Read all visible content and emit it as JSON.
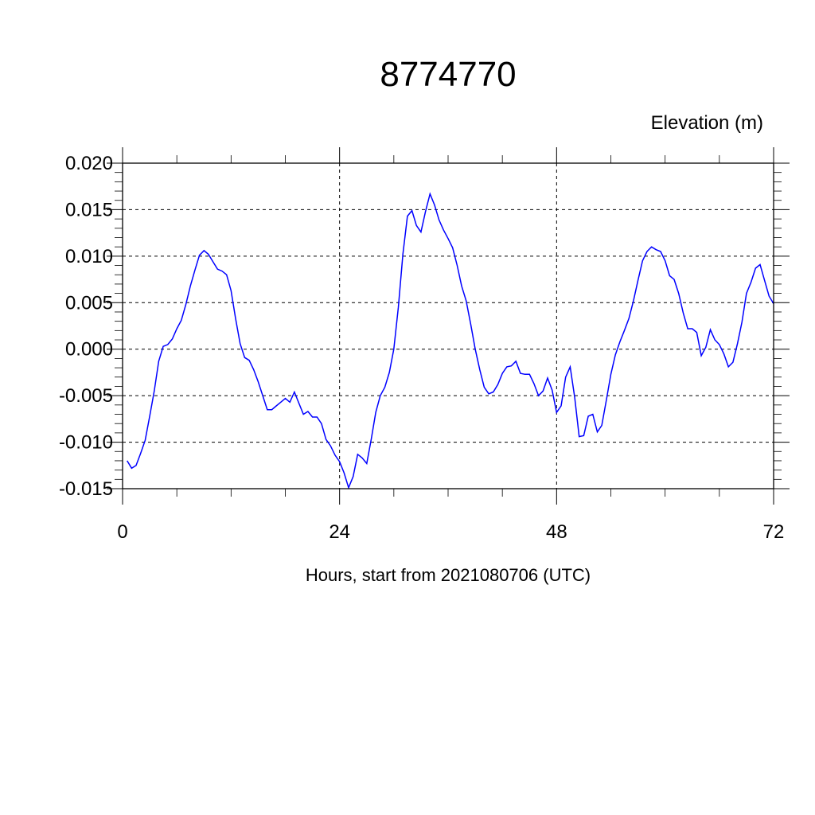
{
  "chart_data": {
    "type": "line",
    "title": "8774770",
    "subtitle": "Elevation (m)",
    "xlabel": "Hours, start from 2021080706 (UTC)",
    "ylabel": "",
    "xlim": [
      0,
      72
    ],
    "ylim": [
      -0.015,
      0.02
    ],
    "xticks": [
      0,
      24,
      48,
      72
    ],
    "xtick_labels": [
      "0",
      "24",
      "48",
      "72"
    ],
    "yticks": [
      -0.015,
      -0.01,
      -0.005,
      0.0,
      0.005,
      0.01,
      0.015,
      0.02
    ],
    "ytick_labels": [
      "-0.015",
      "-0.010",
      "-0.005",
      "0.000",
      "0.005",
      "0.010",
      "0.015",
      "0.020"
    ],
    "grid": true,
    "line_color": "#0000ff",
    "series": [
      {
        "x": [
          0.5,
          1,
          1.5,
          2,
          2.5,
          3,
          3.5,
          4,
          4.5,
          5,
          5.5,
          6,
          6.5,
          7,
          7.5,
          8,
          8.5,
          9,
          9.5,
          10,
          10.5,
          11,
          11.5,
          12,
          12.5,
          13,
          13.5,
          14,
          14.5,
          15,
          15.5,
          16,
          16.5,
          17,
          17.5,
          18,
          18.5,
          19,
          19.5,
          20,
          20.5,
          21,
          21.5,
          22,
          22.5,
          23,
          23.5,
          24,
          24.5,
          25,
          25.5,
          26,
          26.5,
          27,
          27.5,
          28,
          28.5,
          29,
          29.5,
          30,
          30.5,
          31,
          31.5,
          32,
          32.5,
          33,
          33.5,
          34,
          34.5,
          35,
          35.5,
          36,
          36.5,
          37,
          37.5,
          38,
          38.5,
          39,
          39.5,
          40,
          40.5,
          41,
          41.5,
          42,
          42.5,
          43,
          43.5,
          44,
          44.5,
          45,
          45.5,
          46,
          46.5,
          47,
          47.5,
          48,
          48.5,
          49,
          49.5,
          50,
          50.5,
          51,
          51.5,
          52,
          52.5,
          53,
          53.5,
          54,
          54.5,
          55,
          55.5,
          56,
          56.5,
          57,
          57.5,
          58,
          58.5,
          59,
          59.5,
          60,
          60.5,
          61,
          61.5,
          62,
          62.5,
          63,
          63.5,
          64,
          64.5,
          65,
          65.5,
          66,
          66.5,
          67,
          67.5,
          68,
          68.5,
          69,
          69.5,
          70,
          70.5,
          71,
          71.5,
          72
        ],
        "values": [
          -0.012,
          -0.0128,
          -0.0125,
          -0.0112,
          -0.0098,
          -0.0072,
          -0.0045,
          -0.0013,
          0.0003,
          0.0005,
          0.0011,
          0.0022,
          0.0031,
          0.0048,
          0.0068,
          0.0085,
          0.0101,
          0.0106,
          0.0102,
          0.0094,
          0.0086,
          0.0084,
          0.008,
          0.0063,
          0.0033,
          0.0006,
          -0.0009,
          -0.0012,
          -0.0022,
          -0.0035,
          -0.005,
          -0.0065,
          -0.0065,
          -0.0061,
          -0.0057,
          -0.0053,
          -0.0057,
          -0.0046,
          -0.0058,
          -0.007,
          -0.0067,
          -0.0073,
          -0.0073,
          -0.008,
          -0.0097,
          -0.0104,
          -0.0114,
          -0.0121,
          -0.0133,
          -0.0149,
          -0.0137,
          -0.0113,
          -0.0117,
          -0.0123,
          -0.0097,
          -0.0068,
          -0.005,
          -0.0041,
          -0.0025,
          0.0,
          0.0045,
          0.0102,
          0.0143,
          0.0149,
          0.0133,
          0.0126,
          0.0148,
          0.0167,
          0.0155,
          0.0139,
          0.0128,
          0.0119,
          0.0109,
          0.009,
          0.0068,
          0.0052,
          0.0027,
          0.0,
          -0.0022,
          -0.0041,
          -0.0048,
          -0.0046,
          -0.0038,
          -0.0026,
          -0.0019,
          -0.0018,
          -0.0013,
          -0.0026,
          -0.0027,
          -0.0027,
          -0.0037,
          -0.005,
          -0.0045,
          -0.0031,
          -0.0044,
          -0.0068,
          -0.0061,
          -0.003,
          -0.0019,
          -0.0052,
          -0.0094,
          -0.0093,
          -0.0072,
          -0.007,
          -0.0089,
          -0.0082,
          -0.0055,
          -0.0027,
          -0.0006,
          0.0008,
          0.002,
          0.0033,
          0.0052,
          0.0074,
          0.0095,
          0.0105,
          0.011,
          0.0107,
          0.0105,
          0.0095,
          0.0079,
          0.0075,
          0.006,
          0.0039,
          0.0022,
          0.0022,
          0.0018,
          -0.0007,
          0.0002,
          0.0021,
          0.001,
          0.0005,
          -0.0005,
          -0.0019,
          -0.0014,
          0.0006,
          0.0029,
          0.006,
          0.0072,
          0.0087,
          0.0091,
          0.0074,
          0.0057,
          0.0049
        ]
      }
    ]
  }
}
